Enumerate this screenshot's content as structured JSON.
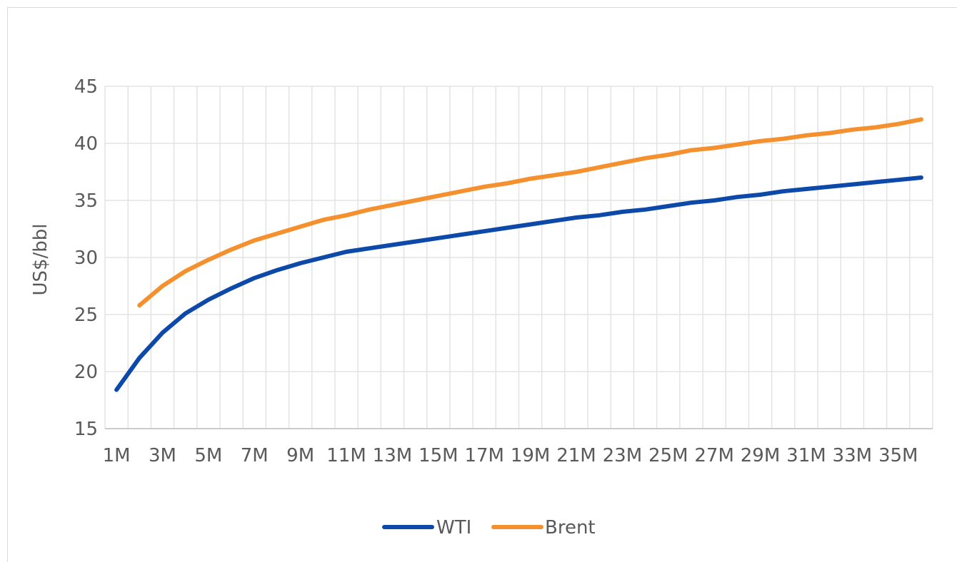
{
  "chart_data": {
    "type": "line",
    "title": "",
    "xlabel": "",
    "ylabel": "US$/bbl",
    "ylim": [
      15,
      45
    ],
    "yticks": [
      15,
      20,
      25,
      30,
      35,
      40,
      45
    ],
    "x": [
      "1M",
      "2M",
      "3M",
      "4M",
      "5M",
      "6M",
      "7M",
      "8M",
      "9M",
      "10M",
      "11M",
      "12M",
      "13M",
      "14M",
      "15M",
      "16M",
      "17M",
      "18M",
      "19M",
      "20M",
      "21M",
      "22M",
      "23M",
      "24M",
      "25M",
      "26M",
      "27M",
      "28M",
      "29M",
      "30M",
      "31M",
      "32M",
      "33M",
      "34M",
      "35M",
      "36M"
    ],
    "xtick_labels": [
      "1M",
      "3M",
      "5M",
      "7M",
      "9M",
      "11M",
      "13M",
      "15M",
      "17M",
      "19M",
      "21M",
      "23M",
      "25M",
      "27M",
      "29M",
      "31M",
      "33M",
      "35M"
    ],
    "grid": true,
    "legend_position": "bottom",
    "series": [
      {
        "name": "WTI",
        "color": "#0c49a9",
        "values": [
          18.4,
          21.2,
          23.4,
          25.1,
          26.3,
          27.3,
          28.2,
          28.9,
          29.5,
          30.0,
          30.5,
          30.8,
          31.1,
          31.4,
          31.7,
          32.0,
          32.3,
          32.6,
          32.9,
          33.2,
          33.5,
          33.7,
          34.0,
          34.2,
          34.5,
          34.8,
          35.0,
          35.3,
          35.5,
          35.8,
          36.0,
          36.2,
          36.4,
          36.6,
          36.8,
          37.0
        ]
      },
      {
        "name": "Brent",
        "color": "#f4902e",
        "values": [
          null,
          25.8,
          27.5,
          28.8,
          29.8,
          30.7,
          31.5,
          32.1,
          32.7,
          33.3,
          33.7,
          34.2,
          34.6,
          35.0,
          35.4,
          35.8,
          36.2,
          36.5,
          36.9,
          37.2,
          37.5,
          37.9,
          38.3,
          38.7,
          39.0,
          39.4,
          39.6,
          39.9,
          40.2,
          40.4,
          40.7,
          40.9,
          41.2,
          41.4,
          41.7,
          42.1
        ]
      }
    ]
  }
}
